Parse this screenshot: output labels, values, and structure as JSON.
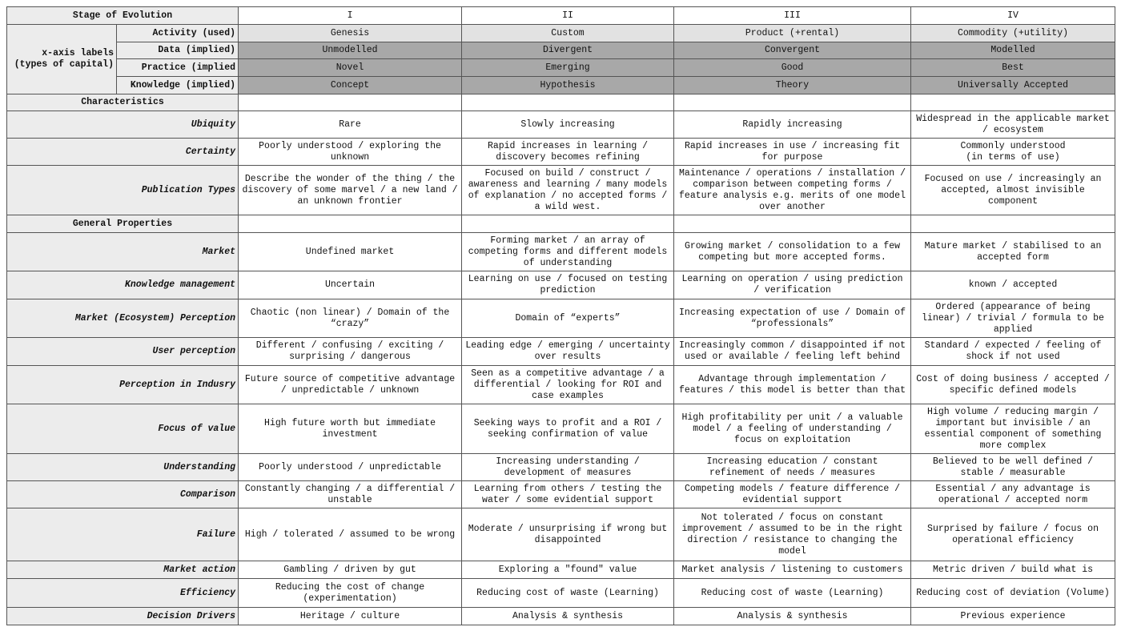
{
  "header": {
    "label": "Stage of Evolution",
    "stages": [
      "I",
      "II",
      "III",
      "IV"
    ]
  },
  "xaxis": {
    "label": "x-axis labels\n(types of capital)",
    "rows": [
      {
        "label": "Activity (used)",
        "values": [
          "Genesis",
          "Custom",
          "Product (+rental)",
          "Commodity (+utility)"
        ]
      },
      {
        "label": "Data (implied)",
        "values": [
          "Unmodelled",
          "Divergent",
          "Convergent",
          "Modelled"
        ]
      },
      {
        "label": "Practice (implied",
        "values": [
          "Novel",
          "Emerging",
          "Good",
          "Best"
        ]
      },
      {
        "label": "Knowledge (implied)",
        "values": [
          "Concept",
          "Hypothesis",
          "Theory",
          "Universally Accepted"
        ]
      }
    ]
  },
  "sections": [
    {
      "title": "Characteristics",
      "rows": [
        {
          "label": "Ubiquity",
          "values": [
            "Rare",
            "Slowly increasing",
            "Rapidly increasing",
            "Widespread in the applicable market / ecosystem"
          ]
        },
        {
          "label": "Certainty",
          "values": [
            "Poorly understood / exploring the unknown",
            "Rapid increases in learning / discovery becomes refining",
            "Rapid increases in use / increasing fit for purpose",
            "Commonly understood\n(in terms of use)"
          ]
        },
        {
          "label": "Publication Types",
          "values": [
            "Describe the wonder of the thing / the discovery of some marvel / a new land / an unknown frontier",
            "Focused on build / construct / awareness and learning / many models of explanation / no accepted forms / a wild west.",
            "Maintenance / operations / installation / comparison between competing forms / feature analysis e.g. merits of one model over another",
            "Focused on use / increasingly an accepted, almost invisible component"
          ]
        }
      ]
    },
    {
      "title": "General Properties",
      "rows": [
        {
          "label": "Market",
          "values": [
            "Undefined market",
            "Forming market / an array of competing forms and different models of understanding",
            "Growing market / consolidation to a few competing but more accepted forms.",
            "Mature market / stabilised to an accepted form"
          ]
        },
        {
          "label": "Knowledge management",
          "values": [
            "Uncertain",
            "Learning on use / focused on testing prediction",
            "Learning on operation / using prediction / verification",
            "known / accepted"
          ]
        },
        {
          "label": "Market (Ecosystem) Perception",
          "values": [
            "Chaotic (non linear) / Domain of the “crazy”",
            "Domain of “experts”",
            "Increasing expectation of use / Domain of “professionals”",
            "Ordered (appearance of being linear) / trivial / formula to be applied"
          ]
        },
        {
          "label": "User perception",
          "values": [
            "Different / confusing / exciting / surprising / dangerous",
            "Leading edge / emerging / uncertainty over results",
            "Increasingly common / disappointed if not used or available / feeling left behind",
            "Standard / expected / feeling of shock if not used"
          ]
        },
        {
          "label": "Perception in Indusry",
          "values": [
            "Future source of competitive advantage / unpredictable / unknown",
            "Seen as a competitive advantage / a differential / looking for ROI and case examples",
            "Advantage through implementation / features / this model is better than that",
            "Cost of doing business / accepted / specific defined models"
          ]
        },
        {
          "label": "Focus of value",
          "values": [
            "High future worth but immediate investment",
            "Seeking ways to profit and a ROI / seeking confirmation of value",
            "High profitability per unit / a valuable model / a feeling of understanding / focus on exploitation",
            "High volume / reducing margin / important but invisible / an essential component of something more complex"
          ]
        },
        {
          "label": "Understanding",
          "values": [
            "Poorly understood / unpredictable",
            "Increasing understanding / development of measures",
            "Increasing education / constant refinement of needs / measures",
            "Believed to be well defined / stable / measurable"
          ]
        },
        {
          "label": "Comparison",
          "values": [
            "Constantly changing / a differential / unstable",
            "Learning from others / testing the water / some evidential support",
            "Competing models / feature difference / evidential support",
            "Essential / any advantage is operational / accepted norm"
          ]
        },
        {
          "label": "Failure",
          "values": [
            "High / tolerated / assumed to be wrong",
            "Moderate / unsurprising if wrong but disappointed",
            "Not tolerated / focus on constant improvement / assumed to be in the right direction / resistance to changing the model",
            "Surprised by failure / focus on operational efficiency"
          ]
        },
        {
          "label": "Market action",
          "values": [
            "Gambling / driven by gut",
            "Exploring a \"found\" value",
            "Market analysis / listening to customers",
            "Metric driven / build what is"
          ]
        },
        {
          "label": "Efficiency",
          "values": [
            "Reducing the cost of change (experimentation)",
            "Reducing cost of waste (Learning)",
            "Reducing cost of waste (Learning)",
            "Reducing cost of deviation (Volume)"
          ]
        },
        {
          "label": "Decision Drivers",
          "values": [
            "Heritage / culture",
            "Analysis & synthesis",
            "Analysis & synthesis",
            "Previous experience"
          ]
        }
      ]
    }
  ]
}
